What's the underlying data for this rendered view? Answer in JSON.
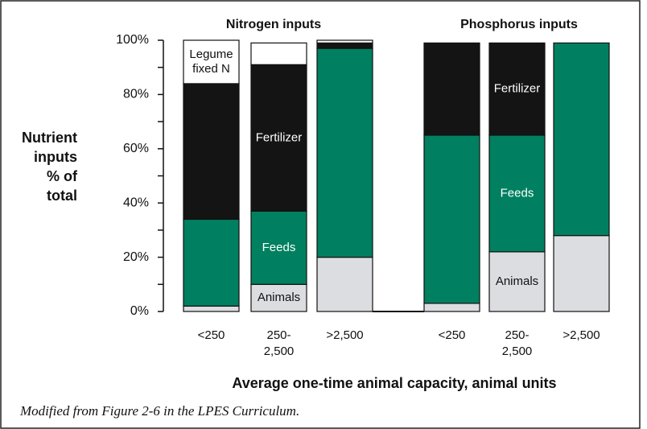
{
  "chart_data": {
    "type": "stacked_bar",
    "group_titles": [
      "Nitrogen inputs",
      "Phosphorus inputs"
    ],
    "categories": [
      "<250",
      "250-\n2,500",
      ">2,500",
      "<250",
      "250-\n2,500",
      ">2,500"
    ],
    "series": [
      {
        "name": "Animals",
        "color": "#dcdde0",
        "values": [
          2,
          10,
          20,
          3,
          22,
          28
        ]
      },
      {
        "name": "Feeds",
        "color": "#008060",
        "values": [
          32,
          27,
          77,
          62,
          43,
          71
        ]
      },
      {
        "name": "Fertilizer",
        "color": "#141414",
        "values": [
          50,
          54,
          2,
          34,
          34,
          0
        ]
      },
      {
        "name": "Legume fixed N",
        "color": "#ffffff",
        "values": [
          16,
          8,
          1,
          null,
          null,
          null
        ]
      }
    ],
    "ylim": [
      0,
      100
    ],
    "yticks": [
      {
        "value": 0,
        "label": "0%"
      },
      {
        "value": 20,
        "label": "20%"
      },
      {
        "value": 40,
        "label": "40%"
      },
      {
        "value": 60,
        "label": "60%"
      },
      {
        "value": 80,
        "label": "80%"
      },
      {
        "value": 100,
        "label": "100%"
      }
    ],
    "minor_yticks": [
      10,
      30,
      50,
      70,
      90
    ],
    "y_label": "Nutrient\ninputs\n% of\ntotal",
    "x_label": "Average one-time animal capacity, animal units",
    "caption": "Modified from Figure 2-6 in the LPES Curriculum."
  }
}
